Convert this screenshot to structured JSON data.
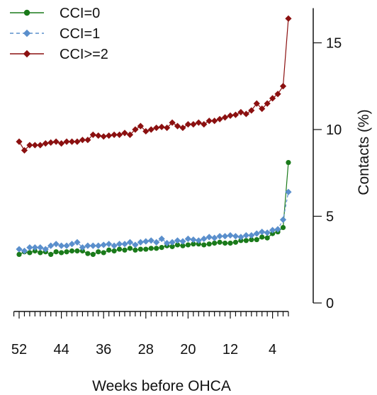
{
  "chart_data": {
    "type": "line",
    "xlabel": "Weeks before OHCA",
    "ylabel": "Contacts (%)",
    "x_reversed": true,
    "xlim": [
      53,
      1
    ],
    "ylim": [
      0,
      17
    ],
    "x_tick_values": [
      52,
      44,
      36,
      28,
      20,
      12,
      4
    ],
    "x_tick_labels": [
      "52",
      "44",
      "36",
      "28",
      "20",
      "12",
      "4"
    ],
    "y_tick_values": [
      0,
      5,
      10,
      15
    ],
    "y_tick_labels": [
      "0",
      "5",
      "10",
      "15"
    ],
    "y_axis_side": "right",
    "grid": false,
    "legend_position": "top-left",
    "x": [
      52,
      51,
      50,
      49,
      48,
      47,
      46,
      45,
      44,
      43,
      42,
      41,
      40,
      39,
      38,
      37,
      36,
      35,
      34,
      33,
      32,
      31,
      30,
      29,
      28,
      27,
      26,
      25,
      24,
      23,
      22,
      21,
      20,
      19,
      18,
      17,
      16,
      15,
      14,
      13,
      12,
      11,
      10,
      9,
      8,
      7,
      6,
      5,
      4,
      3,
      2,
      1
    ],
    "series": [
      {
        "name": "CCI=0",
        "color": "#1a7a1a",
        "marker": "circle",
        "line_style": "solid",
        "values": [
          2.8,
          2.95,
          2.9,
          3.0,
          2.9,
          2.95,
          2.8,
          2.95,
          2.9,
          2.95,
          3.0,
          3.0,
          3.0,
          2.85,
          2.8,
          2.95,
          2.9,
          3.05,
          3.0,
          3.1,
          3.05,
          3.15,
          3.05,
          3.1,
          3.1,
          3.15,
          3.15,
          3.2,
          3.3,
          3.25,
          3.35,
          3.3,
          3.35,
          3.4,
          3.4,
          3.35,
          3.4,
          3.45,
          3.5,
          3.45,
          3.45,
          3.5,
          3.6,
          3.6,
          3.65,
          3.65,
          3.8,
          3.75,
          4.0,
          4.1,
          4.35,
          8.1
        ]
      },
      {
        "name": "CCI=1",
        "color": "#5a8fcc",
        "marker": "diamond",
        "line_style": "dashed",
        "values": [
          3.1,
          3.0,
          3.2,
          3.2,
          3.2,
          3.1,
          3.3,
          3.4,
          3.3,
          3.3,
          3.4,
          3.5,
          3.2,
          3.3,
          3.3,
          3.3,
          3.35,
          3.4,
          3.3,
          3.4,
          3.4,
          3.5,
          3.35,
          3.5,
          3.55,
          3.6,
          3.5,
          3.7,
          3.45,
          3.5,
          3.6,
          3.55,
          3.7,
          3.65,
          3.6,
          3.7,
          3.8,
          3.75,
          3.85,
          3.85,
          3.9,
          3.85,
          3.8,
          3.9,
          3.9,
          4.0,
          4.1,
          4.05,
          4.2,
          4.25,
          4.8,
          6.4
        ]
      },
      {
        "name": "CCI>=2",
        "color": "#8b1010",
        "marker": "diamond",
        "line_style": "solid",
        "values": [
          9.3,
          8.8,
          9.1,
          9.1,
          9.1,
          9.2,
          9.25,
          9.3,
          9.2,
          9.3,
          9.3,
          9.3,
          9.4,
          9.4,
          9.7,
          9.65,
          9.6,
          9.65,
          9.7,
          9.7,
          9.8,
          9.7,
          10.0,
          10.2,
          9.9,
          10.0,
          10.1,
          10.15,
          10.1,
          10.4,
          10.2,
          10.1,
          10.3,
          10.3,
          10.4,
          10.3,
          10.5,
          10.5,
          10.6,
          10.7,
          10.8,
          10.85,
          11.0,
          10.9,
          11.1,
          11.5,
          11.2,
          11.5,
          11.8,
          12.05,
          12.5,
          16.4
        ]
      }
    ]
  }
}
